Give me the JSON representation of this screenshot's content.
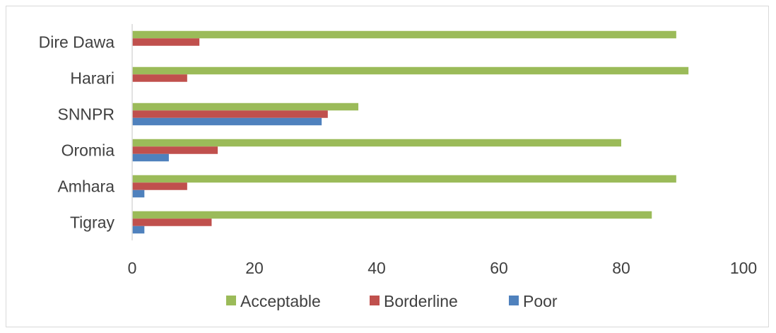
{
  "colors": {
    "axis": "#d9d9d9",
    "text": "#404040"
  },
  "chart_data": {
    "type": "bar",
    "orientation": "horizontal",
    "categories": [
      "Tigray",
      "Amhara",
      "Oromia",
      "SNNPR",
      "Harari",
      "Dire Dawa"
    ],
    "series": [
      {
        "name": "Poor",
        "color": "#4f81bd",
        "values": [
          2,
          2,
          6,
          31,
          0,
          0
        ]
      },
      {
        "name": "Borderline",
        "color": "#c0504d",
        "values": [
          13,
          9,
          14,
          32,
          9,
          11
        ]
      },
      {
        "name": "Acceptable",
        "color": "#9bbb59",
        "values": [
          85,
          89,
          80,
          37,
          91,
          89
        ]
      }
    ],
    "xlim": [
      0,
      100
    ],
    "xticks": [
      "0",
      "20",
      "40",
      "60",
      "80",
      "100"
    ],
    "grid": false,
    "legend": {
      "position": "bottom",
      "order": [
        "Acceptable",
        "Borderline",
        "Poor"
      ]
    }
  }
}
